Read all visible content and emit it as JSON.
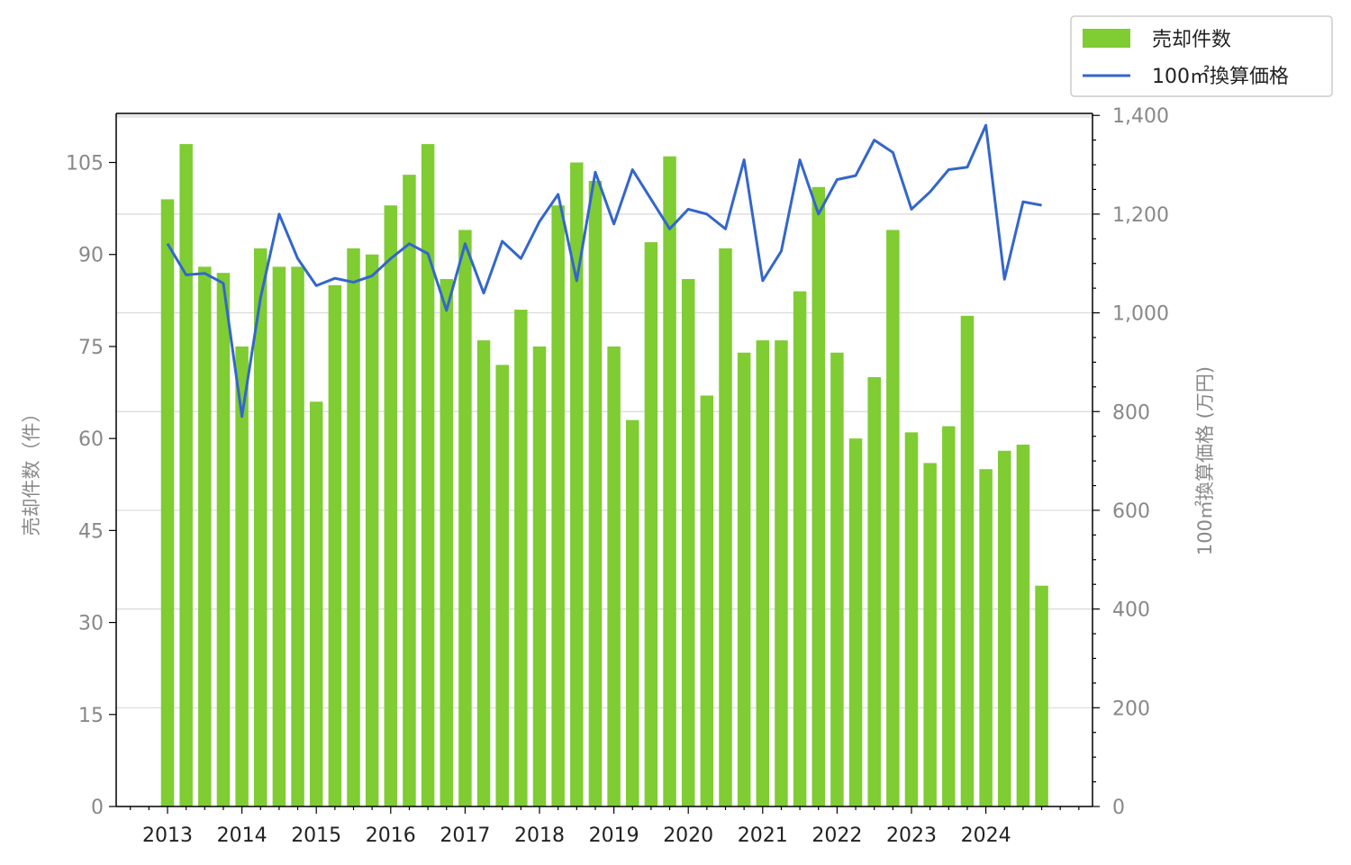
{
  "chart_data": {
    "type": "bar+line",
    "title": "",
    "categories": [
      "2013",
      "2013",
      "2013",
      "2013",
      "2014",
      "2014",
      "2014",
      "2014",
      "2015",
      "2015",
      "2015",
      "2015",
      "2016",
      "2016",
      "2016",
      "2016",
      "2017",
      "2017",
      "2017",
      "2017",
      "2018",
      "2018",
      "2018",
      "2018",
      "2019",
      "2019",
      "2019",
      "2019",
      "2020",
      "2020",
      "2020",
      "2020",
      "2021",
      "2021",
      "2021",
      "2021",
      "2022",
      "2022",
      "2022",
      "2022",
      "2023",
      "2023",
      "2023",
      "2023",
      "2024",
      "2024",
      "2024",
      "2024"
    ],
    "x_tick_labels": [
      "2013",
      "2014",
      "2015",
      "2016",
      "2017",
      "2018",
      "2019",
      "2020",
      "2021",
      "2022",
      "2023",
      "2024"
    ],
    "series": [
      {
        "name": "売却件数",
        "type": "bar",
        "axis": "left",
        "color": "#7fcc33",
        "values": [
          99,
          108,
          88,
          87,
          75,
          91,
          88,
          88,
          66,
          85,
          91,
          90,
          98,
          103,
          108,
          86,
          94,
          76,
          72,
          81,
          75,
          98,
          105,
          102,
          75,
          63,
          92,
          106,
          86,
          67,
          91,
          74,
          76,
          76,
          84,
          101,
          74,
          60,
          70,
          94,
          61,
          56,
          62,
          80,
          55,
          58,
          59,
          36
        ]
      },
      {
        "name": "100㎡換算価格",
        "type": "line",
        "axis": "right",
        "color": "#3366cc",
        "values": [
          1140,
          1077,
          1080,
          1060,
          790,
          1030,
          1200,
          1110,
          1055,
          1070,
          1062,
          1075,
          1110,
          1140,
          1120,
          1005,
          1140,
          1040,
          1145,
          1110,
          1185,
          1240,
          1065,
          1285,
          1180,
          1290,
          1230,
          1170,
          1210,
          1200,
          1170,
          1310,
          1065,
          1125,
          1310,
          1200,
          1270,
          1278,
          1350,
          1325,
          1210,
          1245,
          1290,
          1295,
          1380,
          1068,
          1225,
          1218
        ]
      }
    ],
    "y_left": {
      "label": "売却件数（件）",
      "range": [
        0,
        113
      ],
      "ticks": [
        "0",
        "15",
        "30",
        "45",
        "60",
        "75",
        "90",
        "105"
      ],
      "tick_values": [
        0,
        15,
        30,
        45,
        60,
        75,
        90,
        105
      ]
    },
    "y_right": {
      "label": "100㎡換算価格 (万円)",
      "range": [
        0,
        1404
      ],
      "ticks": [
        "0",
        "200",
        "400",
        "600",
        "800",
        "1,000",
        "1,200",
        "1,400"
      ],
      "tick_values": [
        0,
        200,
        400,
        600,
        800,
        1000,
        1200,
        1400
      ]
    },
    "grid": "horizontal (right axis)",
    "legend_position": "top-right, outside plot"
  }
}
